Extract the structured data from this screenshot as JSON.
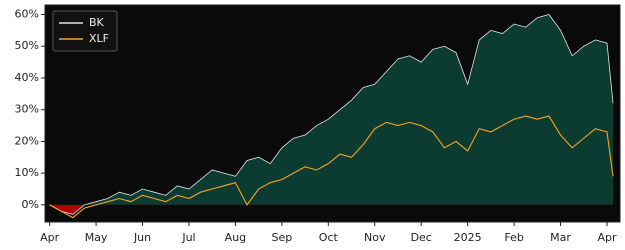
{
  "chart_data": {
    "type": "line",
    "x": [
      0,
      0.25,
      0.5,
      0.75,
      1,
      1.25,
      1.5,
      1.75,
      2,
      2.25,
      2.5,
      2.75,
      3,
      3.25,
      3.5,
      3.75,
      4,
      4.25,
      4.5,
      4.75,
      5,
      5.25,
      5.5,
      5.75,
      6,
      6.25,
      6.5,
      6.75,
      7,
      7.25,
      7.5,
      7.75,
      8,
      8.25,
      8.5,
      8.75,
      9,
      9.25,
      9.5,
      9.75,
      10,
      10.25,
      10.5,
      10.75,
      11,
      11.25,
      11.5,
      11.75,
      12,
      12.13
    ],
    "series": [
      {
        "name": "BK",
        "color": "#e6e6e6",
        "fill": true,
        "values": [
          0,
          -2,
          -3,
          0,
          1,
          2,
          4,
          3,
          5,
          4,
          3,
          6,
          5,
          8,
          11,
          10,
          9,
          14,
          15,
          13,
          18,
          21,
          22,
          25,
          27,
          30,
          33,
          37,
          38,
          42,
          46,
          47,
          45,
          49,
          50,
          48,
          38,
          52,
          55,
          54,
          57,
          56,
          59,
          60,
          55,
          47,
          50,
          52,
          51,
          32
        ]
      },
      {
        "name": "XLF",
        "color": "#f5a623",
        "fill": false,
        "values": [
          0,
          -2,
          -4,
          -1,
          0,
          1,
          2,
          1,
          3,
          2,
          1,
          3,
          2,
          4,
          5,
          6,
          7,
          0,
          5,
          7,
          8,
          10,
          12,
          11,
          13,
          16,
          15,
          19,
          24,
          26,
          25,
          26,
          25,
          23,
          18,
          20,
          17,
          24,
          23,
          25,
          27,
          28,
          27,
          28,
          22,
          18,
          21,
          24,
          23,
          9
        ]
      }
    ],
    "area_colors": {
      "above": "#0c3b31",
      "below": "#b00000"
    },
    "xlim": [
      -0.1,
      12.28
    ],
    "xticks": [
      {
        "value": 0,
        "label": "Apr"
      },
      {
        "value": 1,
        "label": "May"
      },
      {
        "value": 2,
        "label": "Jun"
      },
      {
        "value": 3,
        "label": "Jul"
      },
      {
        "value": 4,
        "label": "Aug"
      },
      {
        "value": 5,
        "label": "Sep"
      },
      {
        "value": 6,
        "label": "Oct"
      },
      {
        "value": 7,
        "label": "Nov"
      },
      {
        "value": 8,
        "label": "Dec"
      },
      {
        "value": 9,
        "label": "2025"
      },
      {
        "value": 10,
        "label": "Feb"
      },
      {
        "value": 11,
        "label": "Mar"
      },
      {
        "value": 12,
        "label": "Apr"
      }
    ],
    "ylim": [
      -5.4,
      63
    ],
    "yticks": [
      {
        "value": 0,
        "label": "0%"
      },
      {
        "value": 10,
        "label": "10%"
      },
      {
        "value": 20,
        "label": "20%"
      },
      {
        "value": 30,
        "label": "30%"
      },
      {
        "value": 40,
        "label": "40%"
      },
      {
        "value": 50,
        "label": "50%"
      },
      {
        "value": 60,
        "label": "60%"
      }
    ],
    "grid": false,
    "legend": "upper-left",
    "background": "#0a0a0a"
  }
}
